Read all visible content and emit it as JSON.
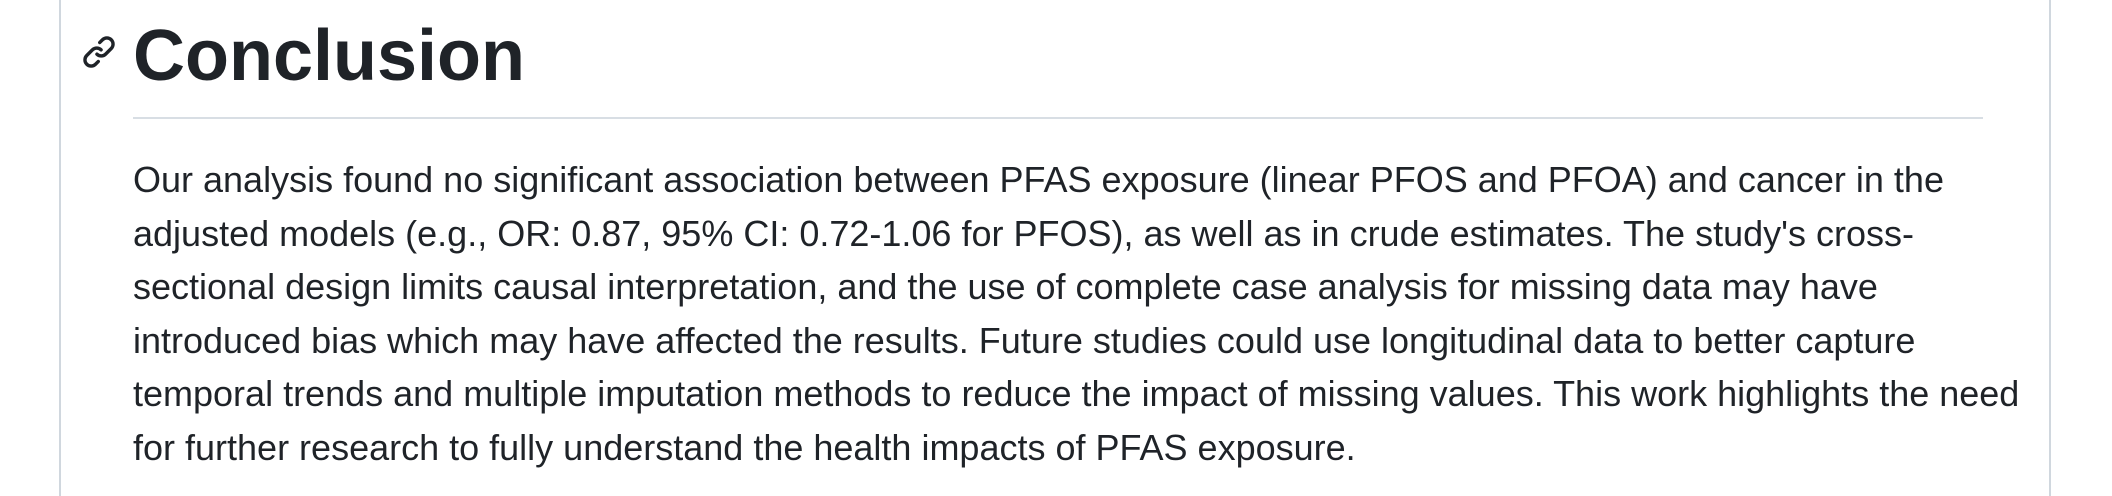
{
  "section": {
    "heading": "Conclusion",
    "anchor_icon": "link-icon",
    "body": "Our analysis found no significant association between PFAS exposure (linear PFOS and PFOA) and cancer in the adjusted models (e.g., OR: 0.87, 95% CI: 0.72-1.06 for PFOS), as well as in crude estimates. The study's cross-sectional design limits causal interpretation, and the use of complete case analysis for missing data may have introduced bias which may have affected the results. Future studies could use longitudinal data to better capture temporal trends and multiple imputation methods to reduce the impact of missing values. This work highlights the need for further research to fully understand the health impacts of PFAS exposure."
  },
  "colors": {
    "text": "#1f2328",
    "border": "#d0d7de",
    "divider": "#d8dee4"
  }
}
